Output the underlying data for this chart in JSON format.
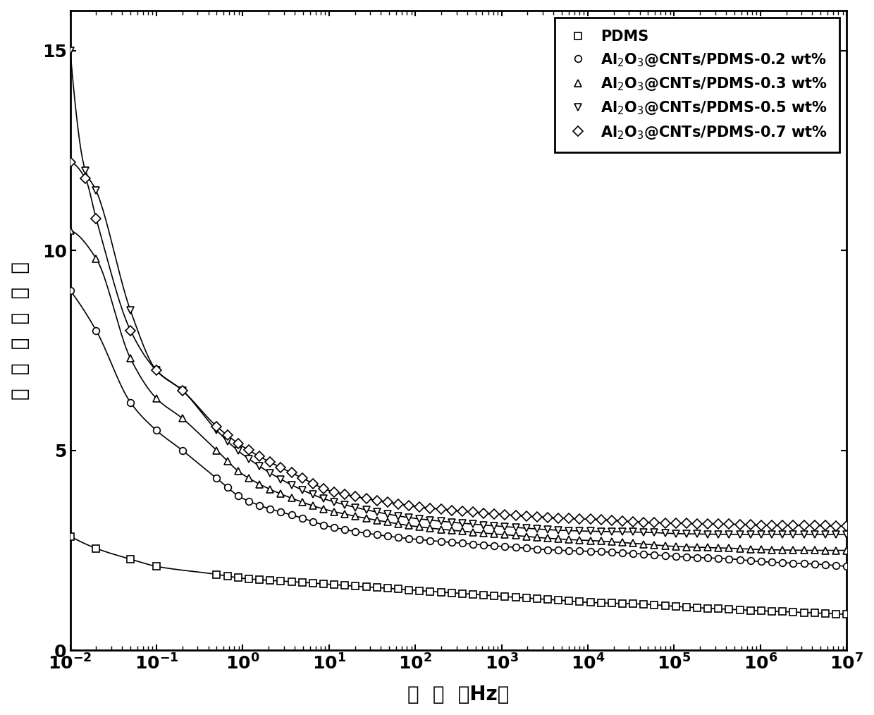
{
  "xlabel": "频  率  （Hz）",
  "ylabel": "相  对  介  电  常  数",
  "xlim": [
    0.01,
    10000000.0
  ],
  "ylim": [
    0,
    16
  ],
  "yticks": [
    0,
    5,
    10,
    15
  ],
  "legend_labels": [
    "PDMS",
    "Al$_2$O$_3$@CNTs/PDMS-0.2 wt%",
    "Al$_2$O$_3$@CNTs/PDMS-0.3 wt%",
    "Al$_2$O$_3$@CNTs/PDMS-0.5 wt%",
    "Al$_2$O$_3$@CNTs/PDMS-0.7 wt%"
  ],
  "markers": [
    "s",
    "o",
    "^",
    "v",
    "D"
  ],
  "background_color": "#ffffff",
  "line_color": "#000000",
  "marker_color": "#000000",
  "marker_facecolor": "white",
  "marker_size": 7,
  "line_width": 1.2,
  "xlabel_fontsize": 20,
  "ylabel_fontsize": 20,
  "tick_fontsize": 18,
  "legend_fontsize": 15,
  "series_params": [
    {
      "name": "PDMS",
      "x_low": [
        0.01,
        0.015,
        0.02,
        0.03,
        0.04,
        0.05,
        0.07,
        0.1,
        0.15,
        0.2,
        0.3
      ],
      "y_low": [
        2.85,
        2.65,
        2.55,
        2.45,
        2.35,
        2.28,
        2.2,
        2.1,
        2.0,
        1.95,
        1.85
      ],
      "x_high_start": 0.3,
      "y_high_start": 1.85,
      "y_high_end": 0.9,
      "decay_rate": 0.08
    },
    {
      "name": "Al2O3_02",
      "x_low": [
        0.01,
        0.015,
        0.02,
        0.03,
        0.04,
        0.05,
        0.07,
        0.1,
        0.15,
        0.2,
        0.3
      ],
      "y_low": [
        9.0,
        8.5,
        8.0,
        7.0,
        6.5,
        6.2,
        5.8,
        5.5,
        5.0,
        4.7,
        4.2
      ],
      "x_high_start": 0.3,
      "y_high_start": 4.2,
      "y_high_end": 2.1,
      "decay_rate": 0.12
    },
    {
      "name": "Al2O3_03",
      "x_low": [
        0.01,
        0.015,
        0.02,
        0.03,
        0.04,
        0.05,
        0.07,
        0.1,
        0.15,
        0.2,
        0.3
      ],
      "y_low": [
        10.5,
        10.2,
        9.8,
        8.5,
        7.8,
        7.3,
        6.8,
        6.3,
        5.8,
        5.4,
        4.7
      ],
      "x_high_start": 0.3,
      "y_high_start": 4.7,
      "y_high_end": 2.5,
      "decay_rate": 0.12
    },
    {
      "name": "Al2O3_05",
      "x_low": [
        0.01,
        0.015,
        0.02,
        0.03,
        0.04,
        0.05,
        0.07,
        0.1,
        0.15,
        0.2,
        0.3
      ],
      "y_low": [
        15.0,
        12.0,
        11.5,
        10.0,
        9.0,
        8.5,
        7.5,
        7.0,
        6.5,
        6.0,
        5.3
      ],
      "x_high_start": 0.3,
      "y_high_start": 5.3,
      "y_high_end": 2.9,
      "decay_rate": 0.12
    },
    {
      "name": "Al2O3_07",
      "x_low": [
        0.01,
        0.015,
        0.02,
        0.03,
        0.04,
        0.05,
        0.07,
        0.1,
        0.15,
        0.2,
        0.3
      ],
      "y_low": [
        12.2,
        11.8,
        10.8,
        9.5,
        8.5,
        8.0,
        7.5,
        7.0,
        6.5,
        6.0,
        5.5
      ],
      "x_high_start": 0.3,
      "y_high_start": 5.5,
      "y_high_end": 3.1,
      "decay_rate": 0.12
    }
  ]
}
